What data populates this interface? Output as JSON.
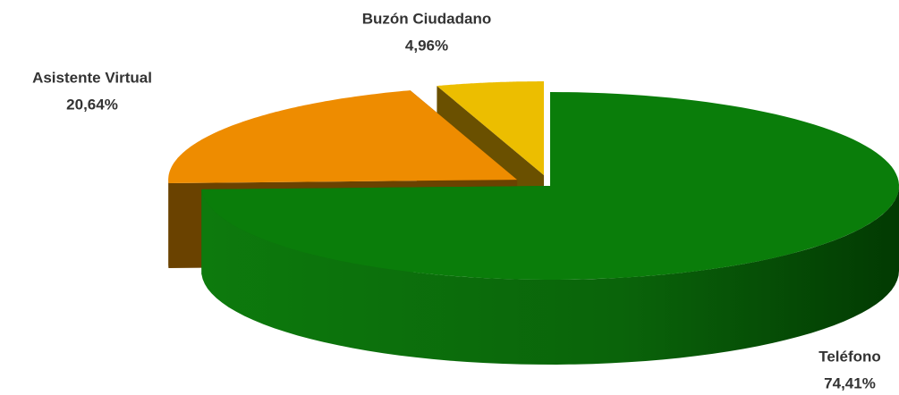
{
  "chart_data": {
    "type": "pie",
    "categories": [
      "Teléfono",
      "Asistente Virtual",
      "Buzón Ciudadano"
    ],
    "values": [
      74.41,
      20.64,
      4.96
    ],
    "value_labels": [
      "74,41%",
      "20,64%",
      "4,96%"
    ],
    "colors": [
      "#0a7d0a",
      "#ee8c00",
      "#ecbe00"
    ]
  }
}
